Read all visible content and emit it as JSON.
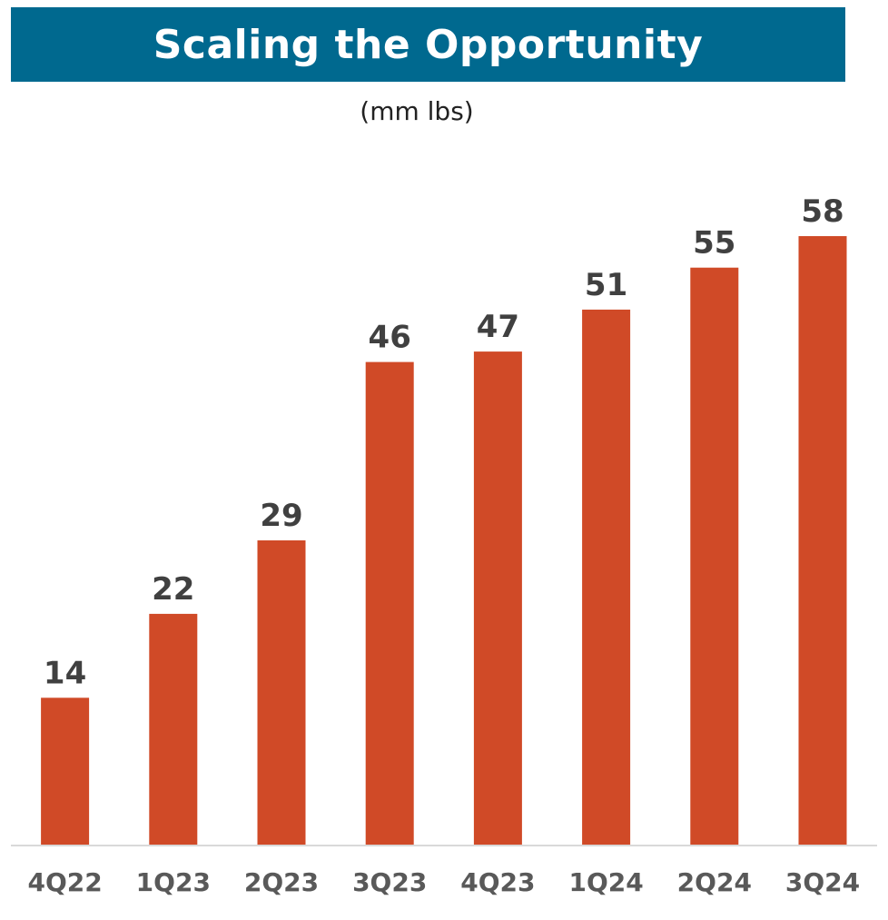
{
  "header": {
    "title": "Scaling the Opportunity",
    "subtitle": "(mm lbs)"
  },
  "colors": {
    "banner": "#00698f",
    "bar": "#d04a27",
    "value_label": "#404040",
    "category_label": "#595959",
    "axis": "#d9d9d9"
  },
  "chart_data": {
    "type": "bar",
    "title": "Scaling the Opportunity",
    "subtitle": "(mm lbs)",
    "categories": [
      "4Q22",
      "1Q23",
      "2Q23",
      "3Q23",
      "4Q23",
      "1Q24",
      "2Q24",
      "3Q24"
    ],
    "values": [
      14,
      22,
      29,
      46,
      47,
      51,
      55,
      58
    ],
    "xlabel": "",
    "ylabel": "",
    "ylim": [
      0,
      58
    ],
    "grid": false,
    "legend": "none",
    "data_labels": true
  }
}
